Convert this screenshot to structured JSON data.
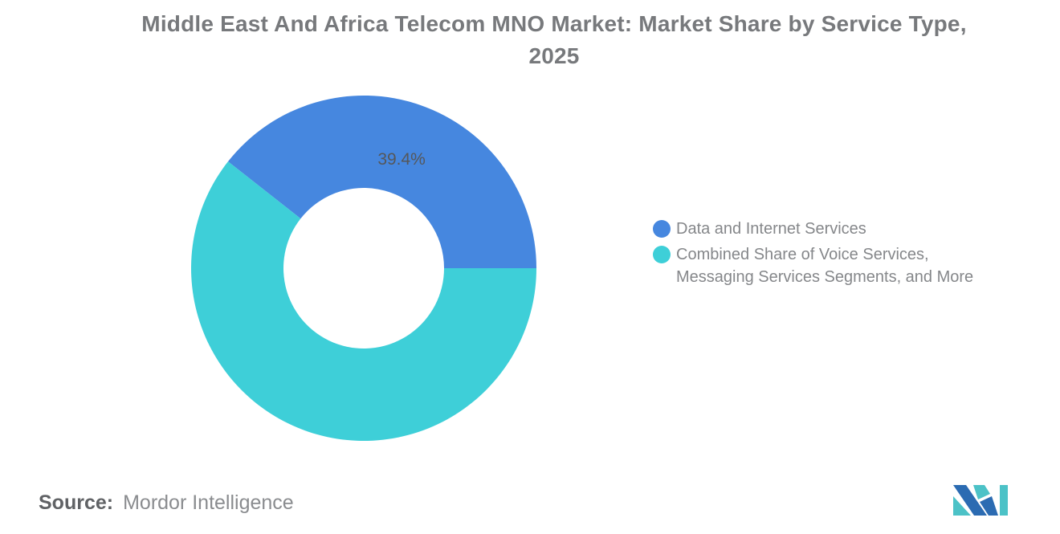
{
  "title": {
    "line1": "Middle East And Africa Telecom MNO Market: Market Share by Service Type,",
    "line2": "2025"
  },
  "chart_data": {
    "type": "pie",
    "donut": true,
    "title": "Middle East And Africa Telecom MNO Market: Market Share by Service Type, 2025",
    "series": [
      {
        "name": "Data and Internet Services",
        "value": 39.4,
        "label": "39.4%",
        "color": "#4687DF"
      },
      {
        "name": "Combined Share of Voice Services, Messaging Services Segments, and More",
        "value": 60.6,
        "label": "",
        "color": "#3ECFD8"
      }
    ],
    "legend_position": "right",
    "label_color": "#55575A",
    "first_slice_end_angle_clock": 90
  },
  "legend": {
    "items": [
      {
        "line1": "Data and Internet Services",
        "line2": "",
        "color": "#4687DF"
      },
      {
        "line1": "Combined Share of Voice Services,",
        "line2": "Messaging Services Segments, and More",
        "color": "#3ECFD8"
      }
    ]
  },
  "source": {
    "prefix": "Source:",
    "text": "Mordor Intelligence"
  },
  "logo": {
    "name": "mordor-intelligence-logo",
    "blue": "#2B6BB2",
    "teal": "#4CC2C7"
  }
}
